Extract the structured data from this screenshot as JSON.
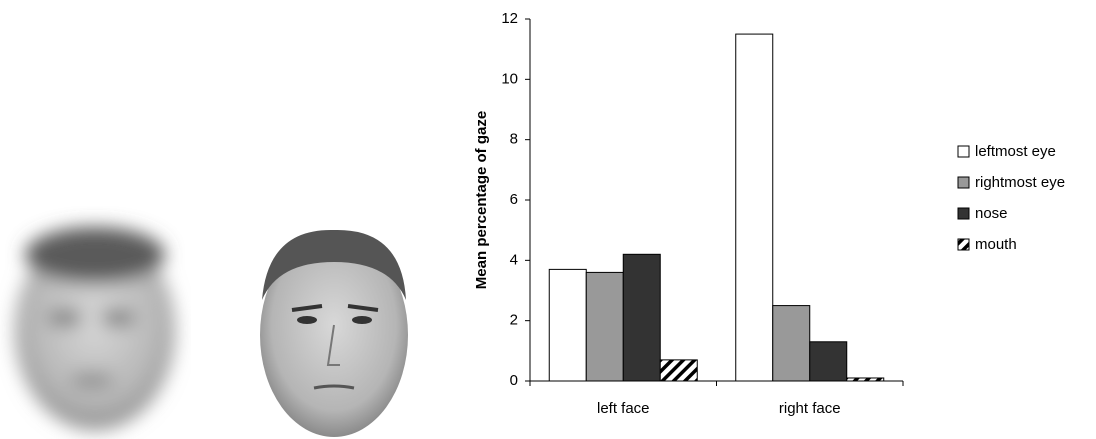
{
  "chart_data": {
    "type": "bar",
    "ylabel": "Mean percentage of gaze",
    "categories": [
      "left face",
      "right face"
    ],
    "series": [
      {
        "name": "leftmost eye",
        "color": "#ffffff",
        "values": [
          3.7,
          11.5
        ]
      },
      {
        "name": "rightmost eye",
        "color": "#999999",
        "values": [
          3.6,
          2.5
        ]
      },
      {
        "name": "nose",
        "color": "#333333",
        "values": [
          4.2,
          1.3
        ]
      },
      {
        "name": "mouth",
        "color": "#ffffff",
        "hatch": true,
        "values": [
          0.7,
          0.1
        ]
      }
    ],
    "ylim": [
      0,
      12
    ],
    "yticks": [
      0,
      2,
      4,
      6,
      8,
      10,
      12
    ],
    "grid": false,
    "legend": "right"
  }
}
